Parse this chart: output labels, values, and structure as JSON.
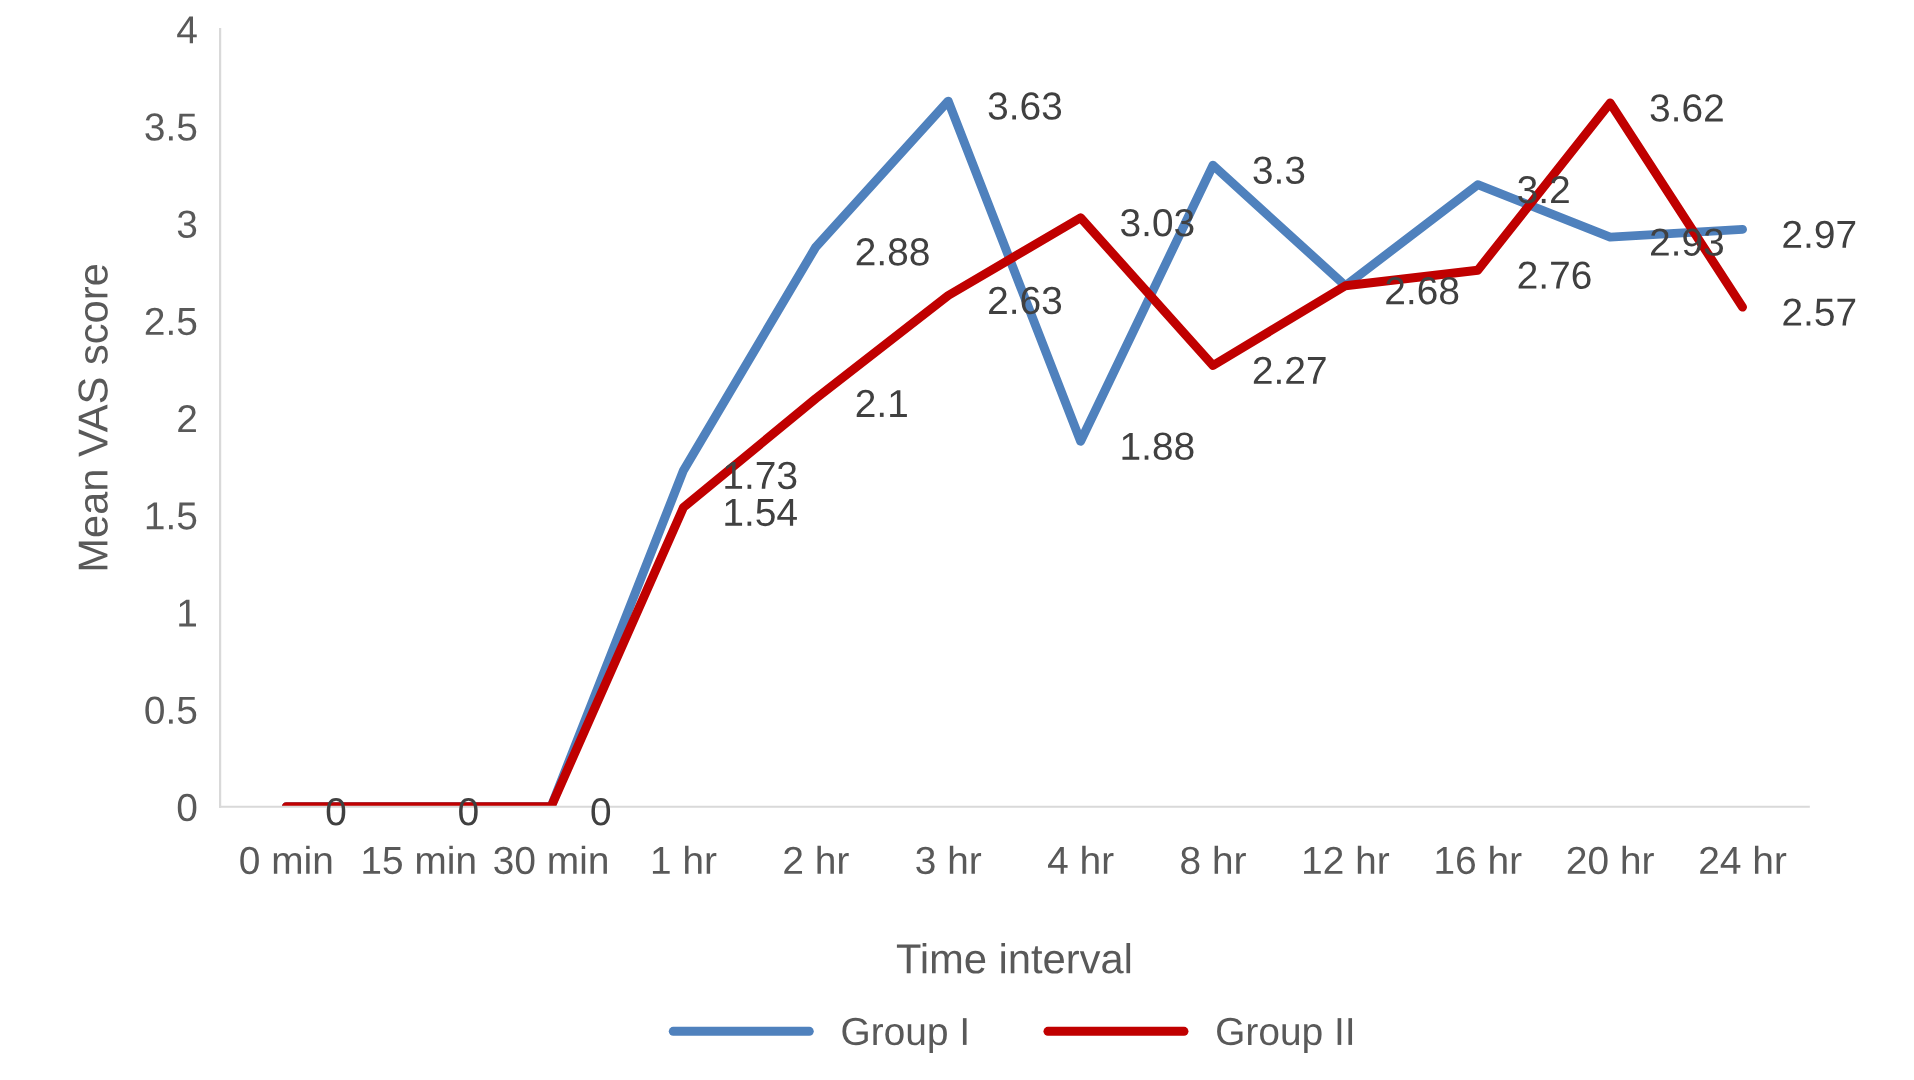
{
  "chart_data": {
    "type": "line",
    "xlabel": "Time interval",
    "ylabel": "Mean VAS score",
    "categories": [
      "0 min",
      "15 min",
      "30 min",
      "1 hr",
      "2 hr",
      "3 hr",
      "4 hr",
      "8 hr",
      "12 hr",
      "16 hr",
      "20 hr",
      "24 hr"
    ],
    "series": [
      {
        "name": "Group I",
        "color": "#4f81bd",
        "values": [
          0,
          0,
          0,
          1.73,
          2.88,
          3.63,
          1.88,
          3.3,
          2.68,
          3.2,
          2.93,
          2.97
        ],
        "value_labels": [
          "0",
          "0",
          "0",
          "1.73",
          "2.88",
          "3.63",
          "1.88",
          "3.3",
          "2.68",
          "3.2",
          "2.93",
          "2.97"
        ]
      },
      {
        "name": "Group II",
        "color": "#c00000",
        "values": [
          0,
          0,
          0,
          1.54,
          2.1,
          2.63,
          3.03,
          2.27,
          2.68,
          2.76,
          3.62,
          2.57
        ],
        "value_labels": [
          null,
          null,
          null,
          "1.54",
          "2.1",
          "2.63",
          "3.03",
          "2.27",
          null,
          "2.76",
          "3.62",
          "2.57"
        ]
      }
    ],
    "ylim": [
      0,
      4
    ],
    "yticks": [
      0,
      0.5,
      1,
      1.5,
      2,
      2.5,
      3,
      3.5,
      4
    ],
    "legend": "bottom",
    "grid": false,
    "marker": "none",
    "line_style": "solid"
  }
}
